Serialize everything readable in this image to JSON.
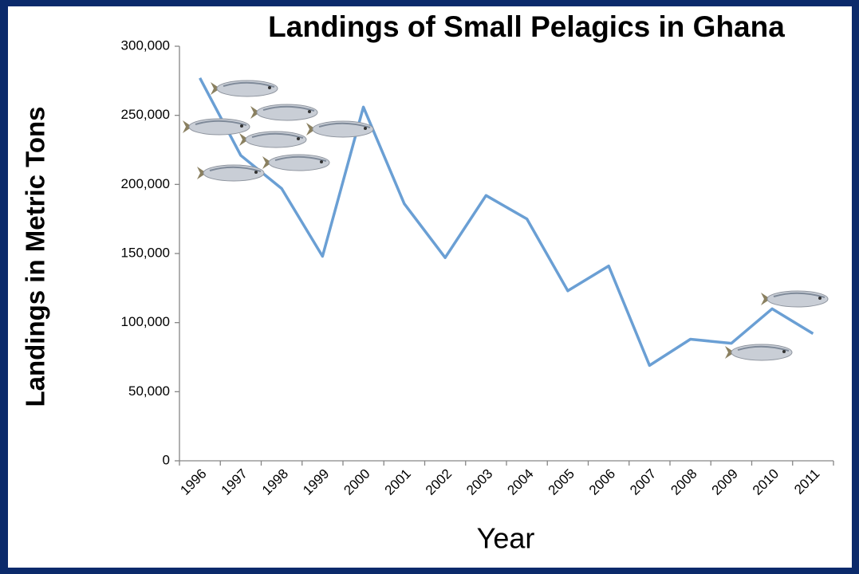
{
  "chart_data": {
    "type": "line",
    "title": "Landings of Small Pelagics in Ghana",
    "x_label": "Year",
    "y_label": "Landings in Metric Tons",
    "categories": [
      "1996",
      "1997",
      "1998",
      "1999",
      "2000",
      "2001",
      "2002",
      "2003",
      "2004",
      "2005",
      "2006",
      "2007",
      "2008",
      "2009",
      "2010",
      "2011"
    ],
    "values": [
      277000,
      221000,
      197000,
      148000,
      256000,
      186000,
      147000,
      192000,
      175000,
      123000,
      141000,
      69000,
      88000,
      85000,
      110000,
      92000
    ],
    "color": "#6a9fd4",
    "ylim": [
      0,
      300000
    ],
    "yticks": [
      0,
      {
        "value": 50000,
        "label": "50,000"
      },
      {
        "value": 100000,
        "label": "100,000"
      },
      {
        "value": 150000,
        "label": "150,000"
      },
      {
        "value": 200000,
        "label": "200,000"
      },
      {
        "value": 250000,
        "label": "250,000"
      },
      {
        "value": 300000,
        "label": "300,000"
      }
    ],
    "grid": false
  }
}
